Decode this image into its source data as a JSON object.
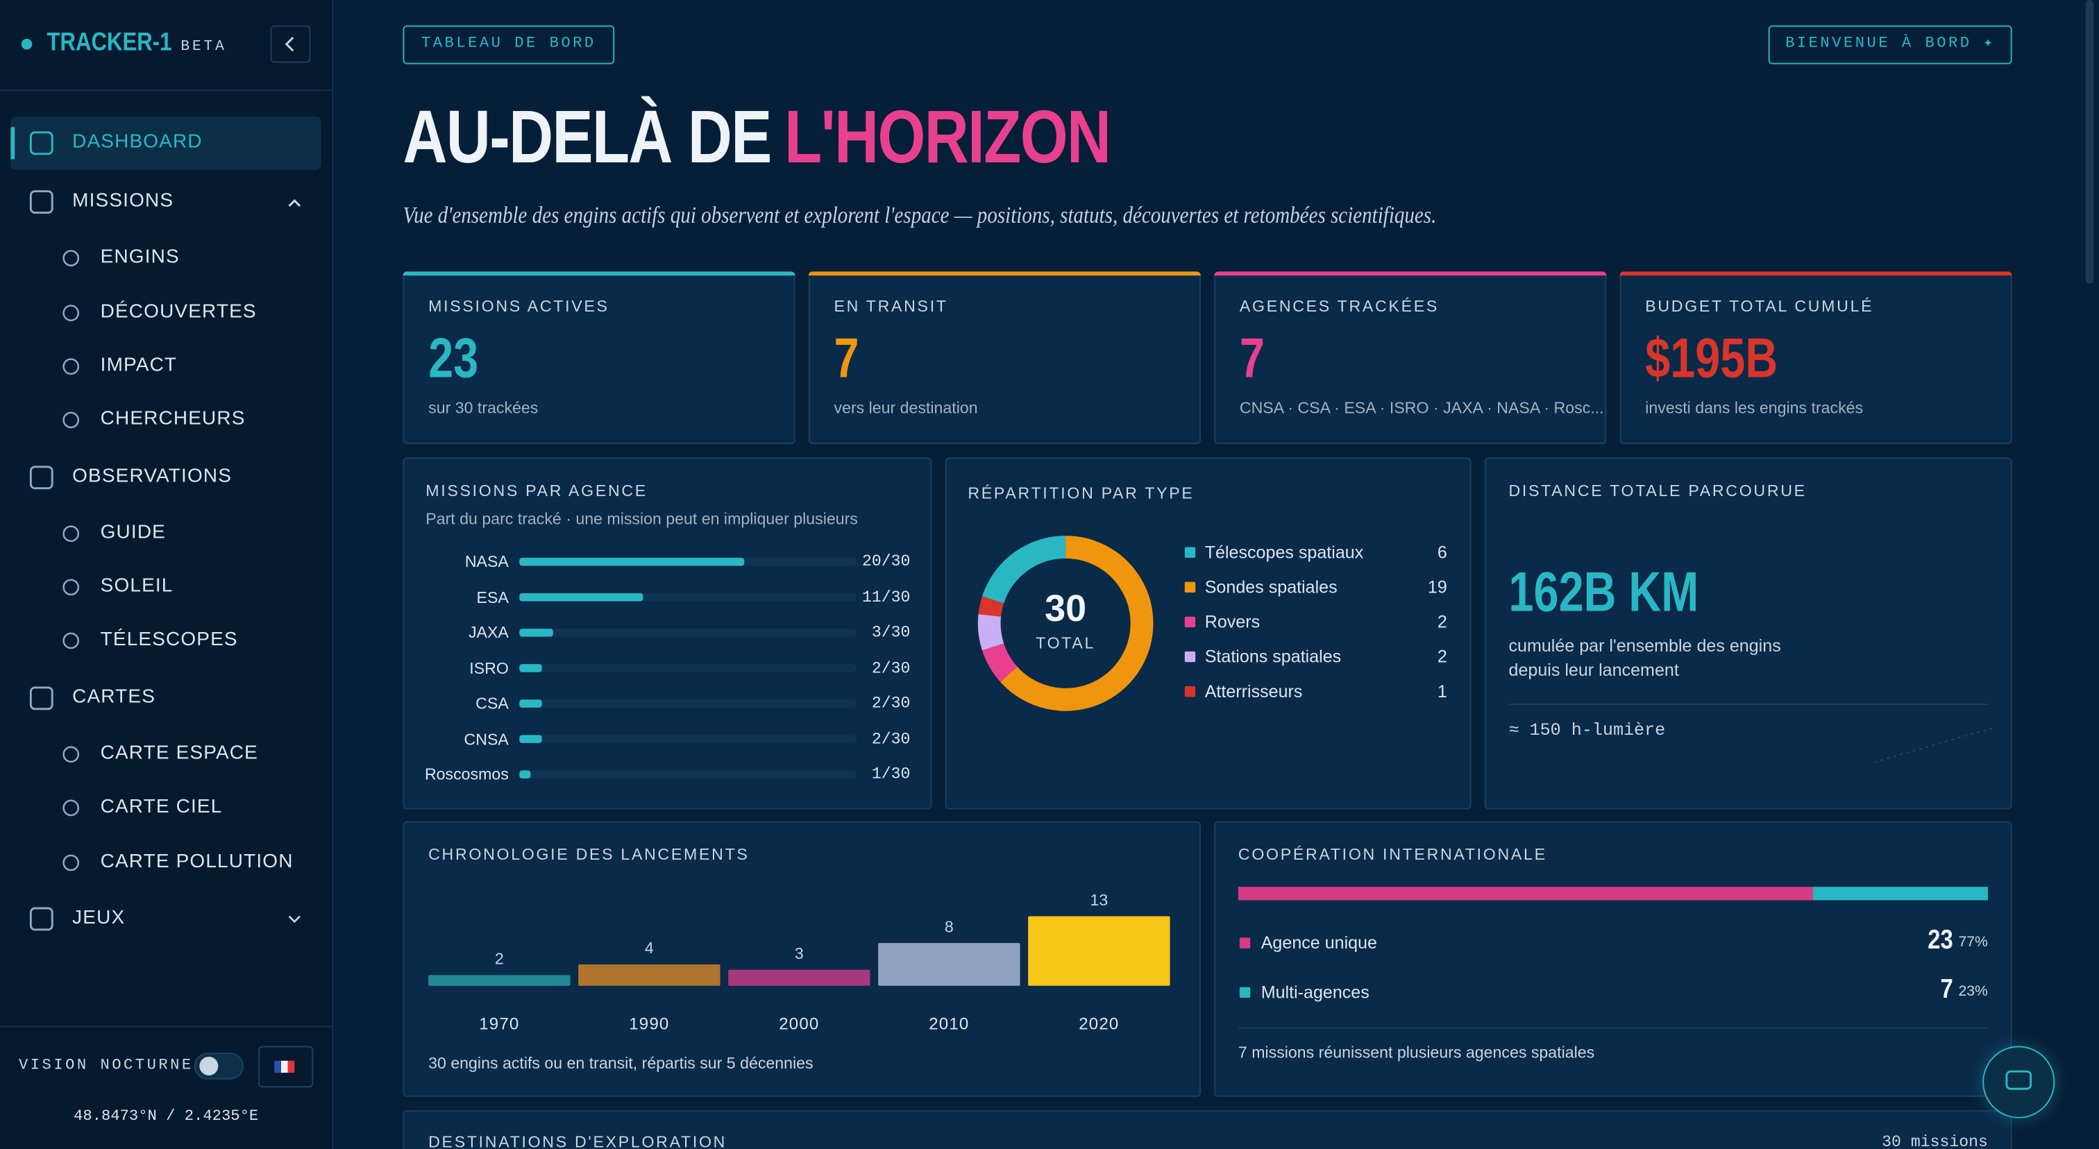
{
  "sidebar": {
    "brand": "TRACKER-1",
    "badge": "BETA",
    "nav": [
      {
        "label": "DASHBOARD",
        "level": 0,
        "active": true
      },
      {
        "label": "MISSIONS",
        "level": 0,
        "open": true
      },
      {
        "label": "ENGINS",
        "level": 1
      },
      {
        "label": "DÉCOUVERTES",
        "level": 1
      },
      {
        "label": "IMPACT",
        "level": 1
      },
      {
        "label": "CHERCHEURS",
        "level": 1
      },
      {
        "label": "OBSERVATIONS",
        "level": 0,
        "open": true
      },
      {
        "label": "GUIDE",
        "level": 1
      },
      {
        "label": "SOLEIL",
        "level": 1
      },
      {
        "label": "TÉLESCOPES",
        "level": 1
      },
      {
        "label": "CARTES",
        "level": 0,
        "open": true
      },
      {
        "label": "CARTE ESPACE",
        "level": 1
      },
      {
        "label": "CARTE CIEL",
        "level": 1
      },
      {
        "label": "CARTE POLLUTION",
        "level": 1
      },
      {
        "label": "JEUX",
        "level": 0,
        "open": false
      }
    ],
    "night_vision": "VISION NOCTURNE",
    "coords": "48.8473°N / 2.4235°E"
  },
  "header": {
    "tag": "TABLEAU DE BORD",
    "welcome": "BIENVENUE À BORD ✦",
    "title_a": "AU-DELÀ DE",
    "title_b": "L'HORIZON",
    "subtitle": "Vue d'ensemble des engins actifs qui observent et explorent l'espace — positions, statuts, découvertes et retombées scientifiques."
  },
  "kpis": [
    {
      "label": "MISSIONS ACTIVES",
      "value": 23,
      "note": "sur 30 trackées",
      "color": "#2ab7c4"
    },
    {
      "label": "EN TRANSIT",
      "value": 7,
      "note": "vers leur destination",
      "color": "#f0960e"
    },
    {
      "label": "AGENCES TRACKÉES",
      "value": 7,
      "note": "CNSA · CSA · ESA · ISRO · JAXA · NASA · Rosc...",
      "color": "#e8408f"
    },
    {
      "label": "BUDGET TOTAL CUMULÉ",
      "value": 195000000000,
      "value_label": "$195B",
      "note": "investi dans les engins trackés",
      "color": "#d9352a"
    }
  ],
  "agencies": {
    "title": "MISSIONS PAR AGENCE",
    "subtitle": "Part du parc tracké · une mission peut en impliquer plusieurs",
    "categories": [
      "NASA",
      "ESA",
      "JAXA",
      "ISRO",
      "CSA",
      "CNSA",
      "Roscosmos"
    ],
    "values": [
      20,
      11,
      3,
      2,
      2,
      2,
      1
    ],
    "value_labels": [
      "20/30",
      "11/30",
      "3/30",
      "2/30",
      "2/30",
      "2/30",
      "1/30"
    ],
    "xlim": [
      0,
      30
    ],
    "color": "#2ab7c4"
  },
  "types": {
    "title": "RÉPARTITION PAR TYPE",
    "total": 30,
    "total_label": "TOTAL",
    "categories": [
      "Télescopes spatiaux",
      "Sondes spatiales",
      "Rovers",
      "Stations spatiales",
      "Atterrisseurs"
    ],
    "values": [
      6,
      19,
      2,
      2,
      1
    ],
    "colors": [
      "#2ab7c4",
      "#f0960e",
      "#e8408f",
      "#c9aef2",
      "#d9352a"
    ]
  },
  "distance": {
    "title": "DISTANCE TOTALE PARCOURUE",
    "value": 162000000000,
    "value_label": "162B KM",
    "note_lines": [
      "cumulée par l'ensemble des engins",
      "depuis leur lancement"
    ],
    "equivalent": "≈ 150 h-lumière"
  },
  "launches": {
    "title": "CHRONOLOGIE DES LANCEMENTS",
    "categories": [
      "1970",
      "1990",
      "2000",
      "2010",
      "2020"
    ],
    "values": [
      2,
      4,
      3,
      8,
      13
    ],
    "colors": [
      "#1f8a96",
      "#b0752f",
      "#a6397b",
      "#8fa2c2",
      "#f5c518"
    ],
    "ylim": [
      0,
      13
    ],
    "note": "30 engins actifs ou en transit, répartis sur 5 décennies"
  },
  "cooperation": {
    "title": "COOPÉRATION INTERNATIONALE",
    "categories": [
      "Agence unique",
      "Multi-agences"
    ],
    "values": [
      23,
      7
    ],
    "percent": [
      77,
      23
    ],
    "percent_labels": [
      "77%",
      "23%"
    ],
    "colors": [
      "#d63c86",
      "#2ab7c4"
    ],
    "note": "7 missions réunissent plusieurs agences spatiales"
  },
  "destinations": {
    "title": "DESTINATIONS D'EXPLORATION",
    "count": "30 missions"
  }
}
